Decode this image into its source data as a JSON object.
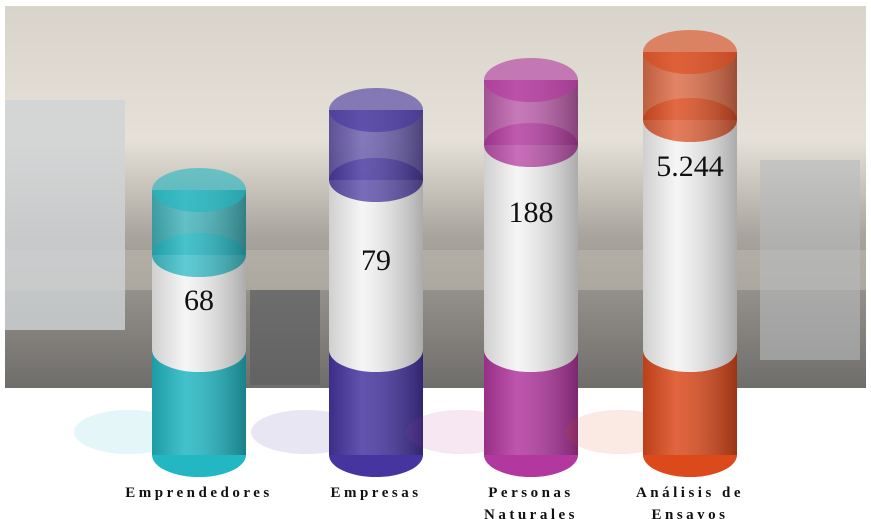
{
  "items": [
    {
      "label": [
        "Emprendedores"
      ],
      "value": "68",
      "color": "#22b7c3"
    },
    {
      "label": [
        "Empresas"
      ],
      "value": "79",
      "color": "#4635a0"
    },
    {
      "label": [
        "Personas",
        "Naturales"
      ],
      "value": "188",
      "color": "#b2379f"
    },
    {
      "label": [
        "Análisis de",
        "Ensayos"
      ],
      "value": "5.244",
      "color": "#dc4a1c"
    }
  ]
}
